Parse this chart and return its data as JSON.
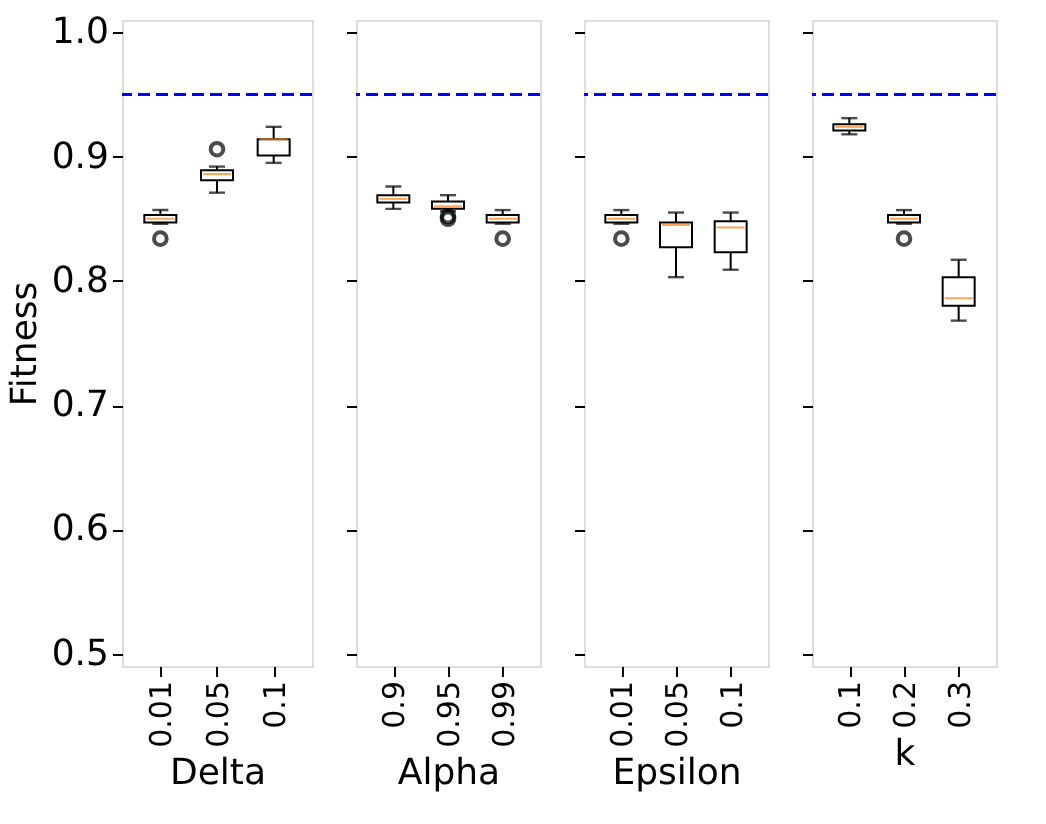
{
  "chart_data": [
    {
      "type": "box",
      "xlabel": "Delta",
      "ylabel": "Fitness",
      "categories": [
        "0.01",
        "0.05",
        "0.1"
      ],
      "boxes": [
        {
          "low": 0.846,
          "q1": 0.847,
          "median": 0.85,
          "q3": 0.853,
          "high": 0.857,
          "outliers": [
            0.834
          ]
        },
        {
          "low": 0.871,
          "q1": 0.881,
          "median": 0.886,
          "q3": 0.889,
          "high": 0.892,
          "outliers": [
            0.906
          ]
        },
        {
          "low": 0.895,
          "q1": 0.901,
          "median": 0.914,
          "q3": 0.914,
          "high": 0.924
        }
      ],
      "ylim": [
        0.49,
        1.01
      ],
      "yticks": [
        0.5,
        0.6,
        0.7,
        0.8,
        0.9,
        {
          "value": 1.0,
          "label": "1.0"
        }
      ],
      "ref_lines": [
        {
          "axis": "y",
          "value": 0.95,
          "color": "#0000ff",
          "line_style": "dashed"
        }
      ]
    },
    {
      "type": "box",
      "xlabel": "Alpha",
      "categories": [
        "0.9",
        "0.95",
        "0.99"
      ],
      "boxes": [
        {
          "low": 0.858,
          "q1": 0.863,
          "median": 0.866,
          "q3": 0.869,
          "high": 0.876
        },
        {
          "low": 0.856,
          "q1": 0.858,
          "median": 0.86,
          "q3": 0.864,
          "high": 0.869,
          "outliers": [
            0.85,
            0.852
          ]
        },
        {
          "low": 0.846,
          "q1": 0.847,
          "median": 0.85,
          "q3": 0.853,
          "high": 0.857,
          "outliers": [
            0.834
          ]
        }
      ],
      "ylim": [
        0.49,
        1.01
      ],
      "yticks": [
        0.5,
        0.6,
        0.7,
        0.8,
        0.9,
        1.0
      ],
      "tick_labels": "x",
      "ref_lines": [
        {
          "axis": "y",
          "value": 0.95,
          "color": "#0000ff",
          "line_style": "dashed"
        }
      ]
    },
    {
      "type": "box",
      "xlabel": "Epsilon",
      "categories": [
        "0.01",
        "0.05",
        "0.1"
      ],
      "boxes": [
        {
          "low": 0.846,
          "q1": 0.847,
          "median": 0.85,
          "q3": 0.853,
          "high": 0.857,
          "outliers": [
            0.834
          ]
        },
        {
          "low": 0.803,
          "q1": 0.827,
          "median": 0.845,
          "q3": 0.847,
          "high": 0.855
        },
        {
          "low": 0.809,
          "q1": 0.823,
          "median": 0.843,
          "q3": 0.848,
          "high": 0.855
        }
      ],
      "ylim": [
        0.49,
        1.01
      ],
      "yticks": [
        0.5,
        0.6,
        0.7,
        0.8,
        0.9,
        1.0
      ],
      "tick_labels": "x",
      "ref_lines": [
        {
          "axis": "y",
          "value": 0.95,
          "color": "#0000ff",
          "line_style": "dashed"
        }
      ]
    },
    {
      "type": "box",
      "xlabel": "k",
      "categories": [
        "0.1",
        "0.2",
        "0.3"
      ],
      "boxes": [
        {
          "low": 0.918,
          "q1": 0.921,
          "median": 0.924,
          "q3": 0.926,
          "high": 0.931
        },
        {
          "low": 0.846,
          "q1": 0.847,
          "median": 0.85,
          "q3": 0.853,
          "high": 0.857,
          "outliers": [
            0.834
          ]
        },
        {
          "low": 0.768,
          "q1": 0.78,
          "median": 0.786,
          "q3": 0.803,
          "high": 0.817
        }
      ],
      "ylim": [
        0.49,
        1.01
      ],
      "yticks": [
        0.5,
        0.6,
        0.7,
        0.8,
        0.9,
        1.0
      ],
      "tick_labels": "x",
      "ref_lines": [
        {
          "axis": "y",
          "value": 0.95,
          "color": "#0000ff",
          "line_style": "dashed"
        }
      ]
    }
  ]
}
